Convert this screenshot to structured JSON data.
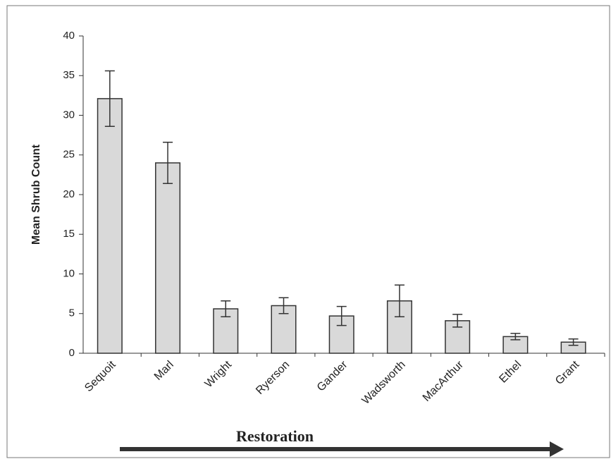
{
  "chart_data": {
    "type": "bar",
    "y_label": "Mean Shrub Count",
    "annotation": "Restoration",
    "categories": [
      "Sequoit",
      "Marl",
      "Wright",
      "Ryerson",
      "Gander",
      "Wadsworth",
      "MacArthur",
      "Ethel",
      "Grant"
    ],
    "values": [
      32.1,
      24.0,
      5.6,
      6.0,
      4.7,
      6.6,
      4.1,
      2.1,
      1.4
    ],
    "errors": [
      3.5,
      2.6,
      1.0,
      1.0,
      1.2,
      2.0,
      0.8,
      0.4,
      0.4
    ],
    "color": "#d9d9d9",
    "ylim": [
      0,
      40
    ],
    "yticks": [
      0,
      5,
      10,
      15,
      20,
      25,
      30,
      35,
      40
    ]
  }
}
